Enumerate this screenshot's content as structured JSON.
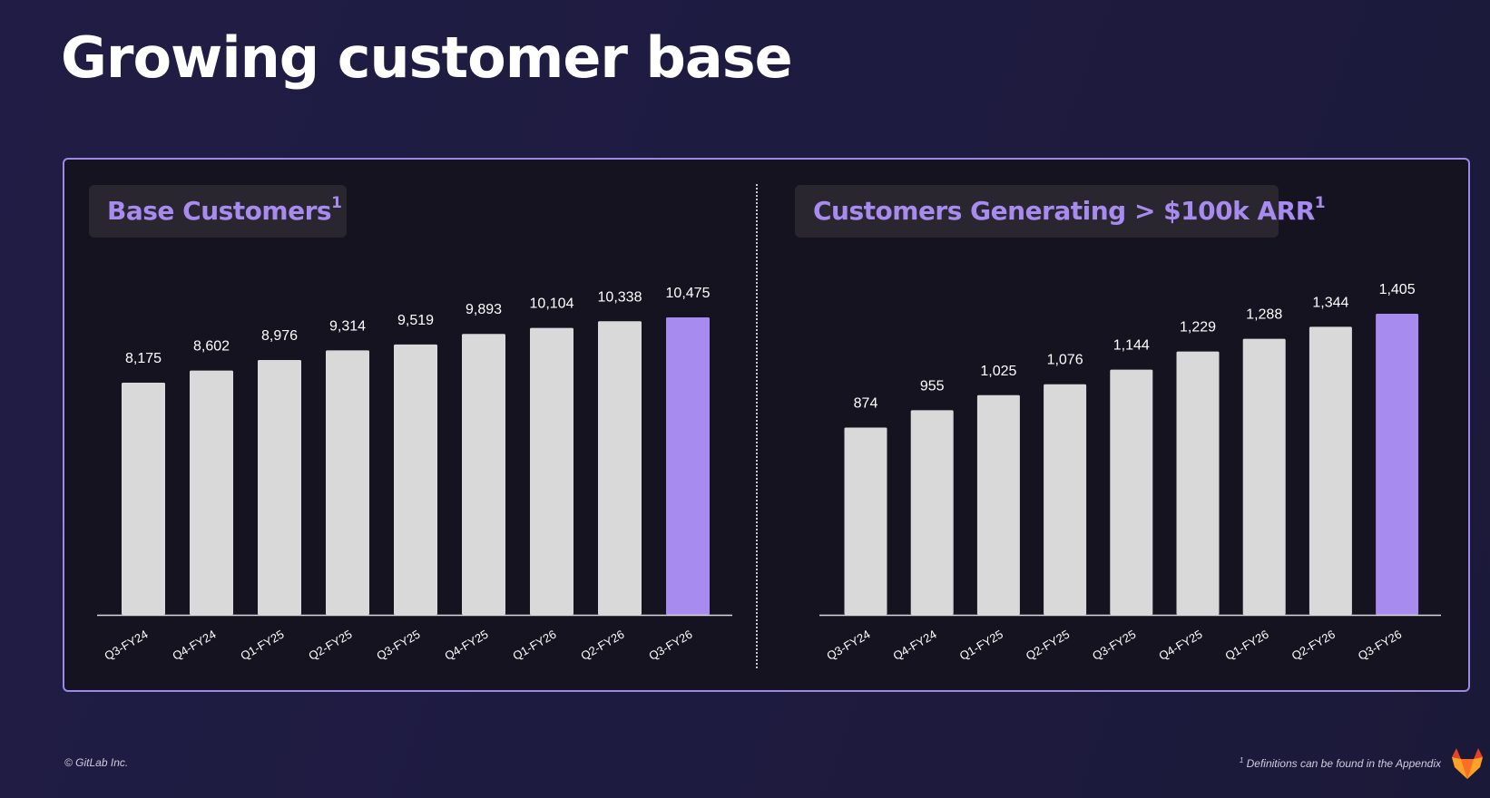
{
  "title": "Growing customer base",
  "colors": {
    "bar": "#d9d9d9",
    "highlight": "#a78bef",
    "axis": "#d9d9d9",
    "accent_border": "#9d88ea"
  },
  "charts": {
    "left": {
      "title": "Base Customers",
      "superscript": "1"
    },
    "right": {
      "title": "Customers Generating > $100k ARR",
      "superscript": "1"
    }
  },
  "chart_data": [
    {
      "type": "bar",
      "title": "Base Customers¹",
      "categories": [
        "Q3-FY24",
        "Q4-FY24",
        "Q1-FY25",
        "Q2-FY25",
        "Q3-FY25",
        "Q4-FY25",
        "Q1-FY26",
        "Q2-FY26",
        "Q3-FY26"
      ],
      "values": [
        8175,
        8602,
        8976,
        9314,
        9519,
        9893,
        10104,
        10338,
        10475
      ],
      "value_labels": [
        "8,175",
        "8,602",
        "8,976",
        "9,314",
        "9,519",
        "9,893",
        "10,104",
        "10,338",
        "10,475"
      ],
      "highlight_index": 8,
      "xlabel": "",
      "ylabel": "",
      "ylim": [
        0,
        10475
      ],
      "grid": false
    },
    {
      "type": "bar",
      "title": "Customers Generating > $100k ARR¹",
      "categories": [
        "Q3-FY24",
        "Q4-FY24",
        "Q1-FY25",
        "Q2-FY25",
        "Q3-FY25",
        "Q4-FY25",
        "Q1-FY26",
        "Q2-FY26",
        "Q3-FY26"
      ],
      "values": [
        874,
        955,
        1025,
        1076,
        1144,
        1229,
        1288,
        1344,
        1405
      ],
      "value_labels": [
        "874",
        "955",
        "1,025",
        "1,076",
        "1,144",
        "1,229",
        "1,288",
        "1,344",
        "1,405"
      ],
      "highlight_index": 8,
      "xlabel": "",
      "ylabel": "",
      "ylim": [
        0,
        1405
      ],
      "grid": false
    }
  ],
  "footer": {
    "copyright": "© GitLab Inc.",
    "note_marker": "1",
    "note": "Definitions can be found in the Appendix"
  },
  "logo": {
    "icon": "gitlab-tanuki-icon"
  }
}
